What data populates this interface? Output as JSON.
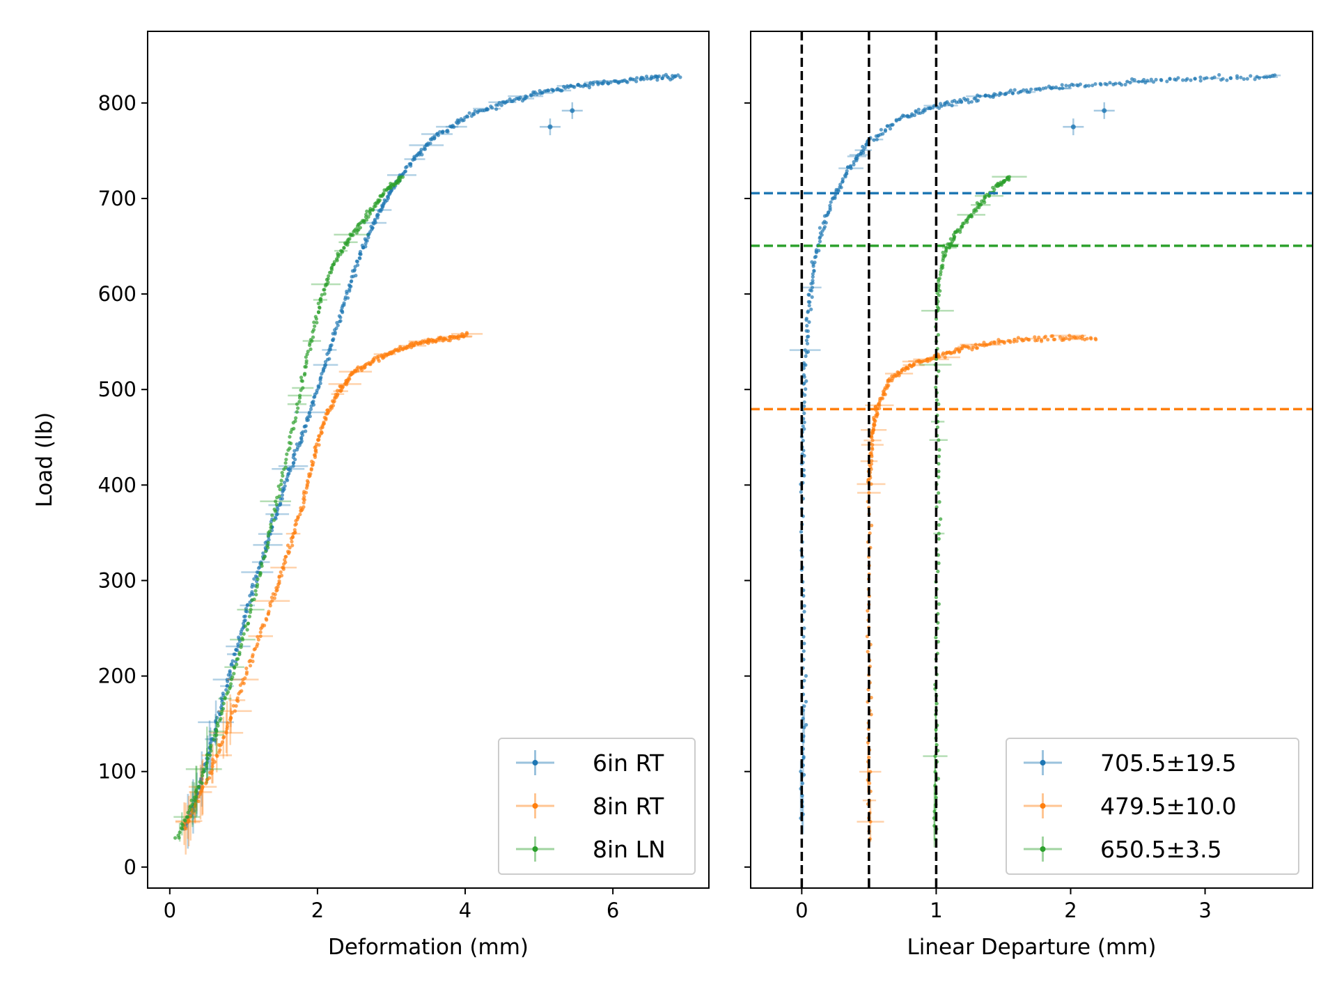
{
  "colors": {
    "blue": "#1f77b4",
    "orange": "#ff7f0e",
    "green": "#2ca02c",
    "black": "#000000"
  },
  "chart_data": [
    {
      "type": "scatter",
      "xlabel": "Deformation (mm)",
      "ylabel": "Load (lb)",
      "xlim": [
        -0.3,
        7.3
      ],
      "ylim": [
        -22,
        875
      ],
      "xticks": [
        0,
        2,
        4,
        6
      ],
      "yticks": [
        0,
        100,
        200,
        300,
        400,
        500,
        600,
        700,
        800
      ],
      "legend": "bottom-right",
      "series": [
        {
          "name": "6in RT",
          "color": "#1f77b4",
          "points": [
            [
              0.2,
              40
            ],
            [
              0.4,
              80
            ],
            [
              0.6,
              140
            ],
            [
              0.8,
              200
            ],
            [
              1.0,
              255
            ],
            [
              1.2,
              310
            ],
            [
              1.4,
              360
            ],
            [
              1.6,
              410
            ],
            [
              1.8,
              455
            ],
            [
              2.0,
              500
            ],
            [
              2.2,
              550
            ],
            [
              2.4,
              600
            ],
            [
              2.6,
              645
            ],
            [
              2.8,
              680
            ],
            [
              3.0,
              710
            ],
            [
              3.3,
              740
            ],
            [
              3.6,
              765
            ],
            [
              4.0,
              785
            ],
            [
              4.5,
              800
            ],
            [
              5.0,
              810
            ],
            [
              5.5,
              818
            ],
            [
              6.0,
              822
            ],
            [
              6.5,
              826
            ],
            [
              6.9,
              828
            ]
          ],
          "outliers": [
            [
              5.15,
              775
            ],
            [
              5.45,
              792
            ]
          ]
        },
        {
          "name": "8in RT",
          "color": "#ff7f0e",
          "points": [
            [
              0.2,
              40
            ],
            [
              0.5,
              90
            ],
            [
              0.8,
              150
            ],
            [
              1.1,
              215
            ],
            [
              1.4,
              280
            ],
            [
              1.6,
              330
            ],
            [
              1.8,
              380
            ],
            [
              1.95,
              430
            ],
            [
              2.1,
              470
            ],
            [
              2.3,
              500
            ],
            [
              2.5,
              518
            ],
            [
              2.8,
              532
            ],
            [
              3.1,
              542
            ],
            [
              3.4,
              549
            ],
            [
              3.7,
              553
            ],
            [
              4.05,
              556
            ]
          ]
        },
        {
          "name": "8in LN",
          "color": "#2ca02c",
          "points": [
            [
              0.1,
              30
            ],
            [
              0.4,
              85
            ],
            [
              0.7,
              160
            ],
            [
              1.0,
              240
            ],
            [
              1.3,
              330
            ],
            [
              1.55,
              420
            ],
            [
              1.8,
              510
            ],
            [
              2.0,
              580
            ],
            [
              2.2,
              630
            ],
            [
              2.45,
              660
            ],
            [
              2.7,
              685
            ],
            [
              2.95,
              710
            ],
            [
              3.15,
              722
            ]
          ]
        }
      ]
    },
    {
      "type": "scatter",
      "xlabel": "Linear Departure (mm)",
      "ylabel": "",
      "xlim": [
        -0.38,
        3.8
      ],
      "ylim": [
        -22,
        875
      ],
      "xticks": [
        0,
        1,
        2,
        3
      ],
      "yticks": [
        0,
        100,
        200,
        300,
        400,
        500,
        600,
        700,
        800
      ],
      "legend": "bottom-right",
      "vlines": [
        0,
        0.5,
        1
      ],
      "hlines": [
        {
          "y": 705.5,
          "color": "#1f77b4"
        },
        {
          "y": 650.5,
          "color": "#2ca02c"
        },
        {
          "y": 479.5,
          "color": "#ff7f0e"
        }
      ],
      "series": [
        {
          "name": "705.5±19.5",
          "color": "#1f77b4",
          "points": [
            [
              0,
              50
            ],
            [
              0.02,
              200
            ],
            [
              0,
              400
            ],
            [
              0.02,
              500
            ],
            [
              0.05,
              580
            ],
            [
              0.1,
              640
            ],
            [
              0.2,
              690
            ],
            [
              0.35,
              730
            ],
            [
              0.5,
              760
            ],
            [
              0.75,
              785
            ],
            [
              1.0,
              797
            ],
            [
              1.3,
              805
            ],
            [
              1.6,
              812
            ],
            [
              2.0,
              818
            ],
            [
              2.5,
              823
            ],
            [
              3.0,
              826
            ],
            [
              3.55,
              828
            ]
          ],
          "outliers": [
            [
              2.02,
              775
            ],
            [
              2.25,
              792
            ]
          ]
        },
        {
          "name": "479.5±10.0",
          "color": "#ff7f0e",
          "points": [
            [
              0.5,
              30
            ],
            [
              0.5,
              200
            ],
            [
              0.5,
              400
            ],
            [
              0.52,
              450
            ],
            [
              0.56,
              480
            ],
            [
              0.65,
              510
            ],
            [
              0.8,
              525
            ],
            [
              1.0,
              535
            ],
            [
              1.2,
              543
            ],
            [
              1.5,
              550
            ],
            [
              1.85,
              554
            ],
            [
              2.2,
              553
            ]
          ]
        },
        {
          "name": "650.5±3.5",
          "color": "#2ca02c",
          "points": [
            [
              1.0,
              30
            ],
            [
              1.0,
              200
            ],
            [
              1.02,
              400
            ],
            [
              1.0,
              580
            ],
            [
              1.05,
              640
            ],
            [
              1.15,
              665
            ],
            [
              1.3,
              690
            ],
            [
              1.45,
              712
            ],
            [
              1.55,
              722
            ]
          ]
        }
      ]
    }
  ]
}
